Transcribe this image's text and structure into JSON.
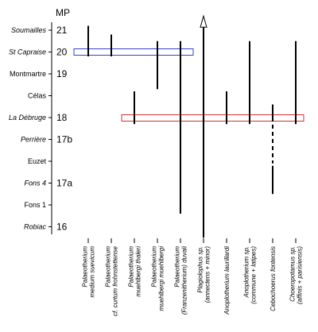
{
  "axis_header": "MP",
  "levels": [
    {
      "locality": "Soumailles",
      "italic": true,
      "mp": "21"
    },
    {
      "locality": "St Capraise",
      "italic": true,
      "mp": "20"
    },
    {
      "locality": "Montmartre",
      "italic": false,
      "mp": "19"
    },
    {
      "locality": "Célas",
      "italic": false,
      "mp": ""
    },
    {
      "locality": "La Débruge",
      "italic": true,
      "mp": "18"
    },
    {
      "locality": "Perrière",
      "italic": true,
      "mp": "17b"
    },
    {
      "locality": "Euzet",
      "italic": false,
      "mp": ""
    },
    {
      "locality": "Fons 4",
      "italic": true,
      "mp": "17a"
    },
    {
      "locality": "Fons 1",
      "italic": false,
      "mp": ""
    },
    {
      "locality": "Robiac",
      "italic": true,
      "mp": "16"
    }
  ],
  "taxa": [
    {
      "lines": [
        "Palaeotherium",
        "medium suevicum"
      ],
      "upright_last": false,
      "range": {
        "from": "Soumailles",
        "to": "St Capraise",
        "extend_top": 0.2,
        "extend_bottom": 0.2
      }
    },
    {
      "lines": [
        "Palaeotherium",
        "cf. curtum frohnstettense"
      ],
      "upright_last": false,
      "range": {
        "from": "Soumailles",
        "to": "St Capraise",
        "extend_top": -0.2,
        "extend_bottom": 0.2
      }
    },
    {
      "lines": [
        "Palaeotherium",
        "muehlbergi thaleri"
      ],
      "upright_last": false,
      "range": {
        "from": "Célas",
        "to": "La Débruge",
        "extend_top": 0.2,
        "extend_bottom": 0.3
      }
    },
    {
      "lines": [
        "Palaeotherium",
        "muehlbergi muehlbergi"
      ],
      "upright_last": false,
      "range": {
        "from": "Soumailles",
        "to": "Montmartre",
        "extend_top": -0.5,
        "extend_bottom": 0.7
      }
    },
    {
      "lines": [
        "Palaeotherium",
        "(Franzenitherium) duvali"
      ],
      "upright_last": false,
      "range": {
        "from": "St Capraise",
        "to": "Fons 1",
        "extend_top": 0.5,
        "extend_bottom": 0.4
      }
    },
    {
      "lines": [
        "Plagiolophus sp.",
        "(annectens + minor)"
      ],
      "upright_last": false,
      "arrow": true,
      "range": {
        "from": "Soumailles",
        "to": "Robiac",
        "extend_top": 0.5,
        "extend_bottom": 0.5
      }
    },
    {
      "lines": [
        "Anoplotherium laurillardi"
      ],
      "upright_last": false,
      "range": {
        "from": "Célas",
        "to": "La Débruge",
        "extend_top": 0.2,
        "extend_bottom": 0.3
      }
    },
    {
      "lines": [
        "Anoplotherium sp.",
        "(commune + latipes)"
      ],
      "upright_last": false,
      "range": {
        "from": "St Capraise",
        "to": "La Débruge",
        "extend_top": 0.5,
        "extend_bottom": 0.3
      }
    },
    {
      "lines": [
        "Cebochoerus fontensis"
      ],
      "upright_last": false,
      "range": {
        "from": "Célas",
        "to": "La Débruge",
        "extend_top": -0.4,
        "extend_bottom": 0,
        "dashed_to": "Euzet",
        "dashed_extend": 0.1,
        "solid_to": "Fons 4",
        "solid_extend": 0.5
      }
    },
    {
      "lines": [
        "Choeropotamus sp.",
        "(affinis + parisiensis)"
      ],
      "upright_last": false,
      "range": {
        "from": "St Capraise",
        "to": "La Débruge",
        "extend_top": 0.5,
        "extend_bottom": 0.3
      }
    }
  ]
}
